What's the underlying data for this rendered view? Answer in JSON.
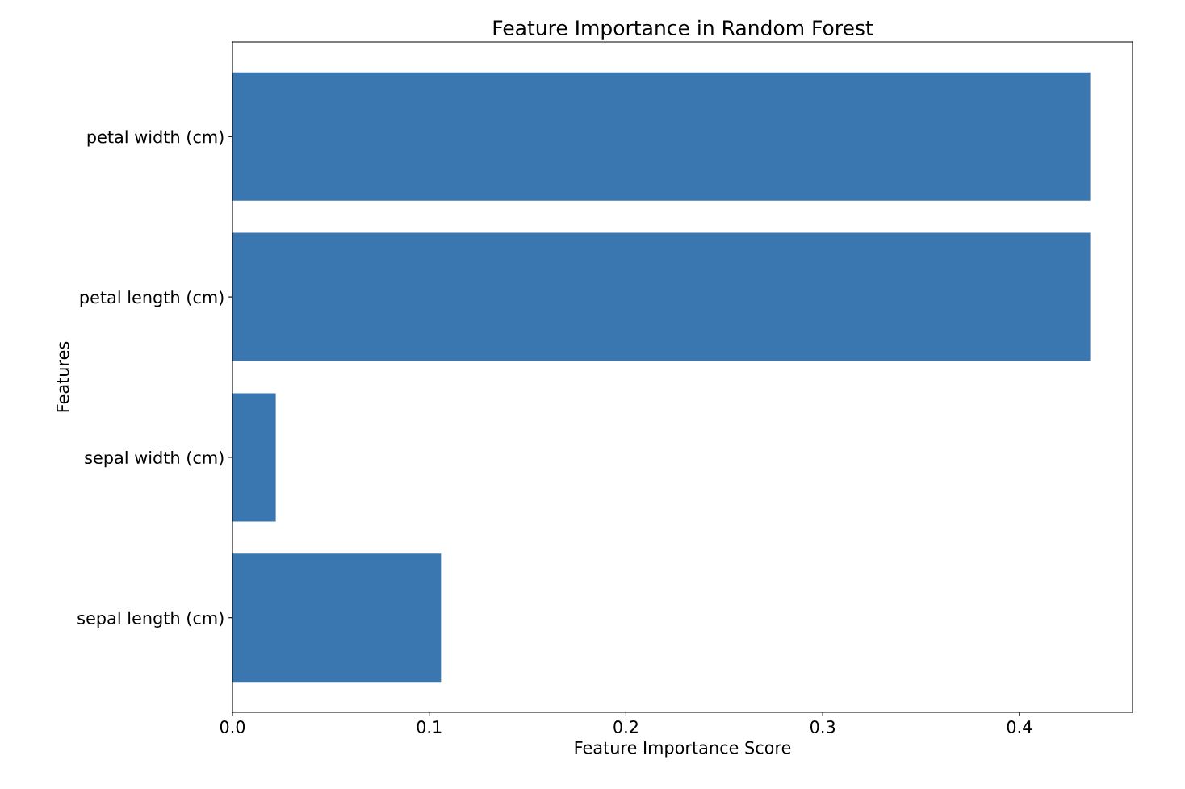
{
  "chart_data": {
    "type": "bar",
    "orientation": "horizontal",
    "title": "Feature Importance in Random Forest",
    "xlabel": "Feature Importance Score",
    "ylabel": "Features",
    "categories": [
      "petal width (cm)",
      "petal length (cm)",
      "sepal width (cm)",
      "sepal length (cm)"
    ],
    "values": [
      0.436,
      0.436,
      0.022,
      0.106
    ],
    "color": "#3a76af",
    "xlim": [
      0,
      0.4575
    ],
    "xticks": [
      {
        "value": 0,
        "label": "0.0"
      },
      0.1,
      0.2,
      0.3,
      0.4
    ],
    "grid": false,
    "legend": false
  }
}
